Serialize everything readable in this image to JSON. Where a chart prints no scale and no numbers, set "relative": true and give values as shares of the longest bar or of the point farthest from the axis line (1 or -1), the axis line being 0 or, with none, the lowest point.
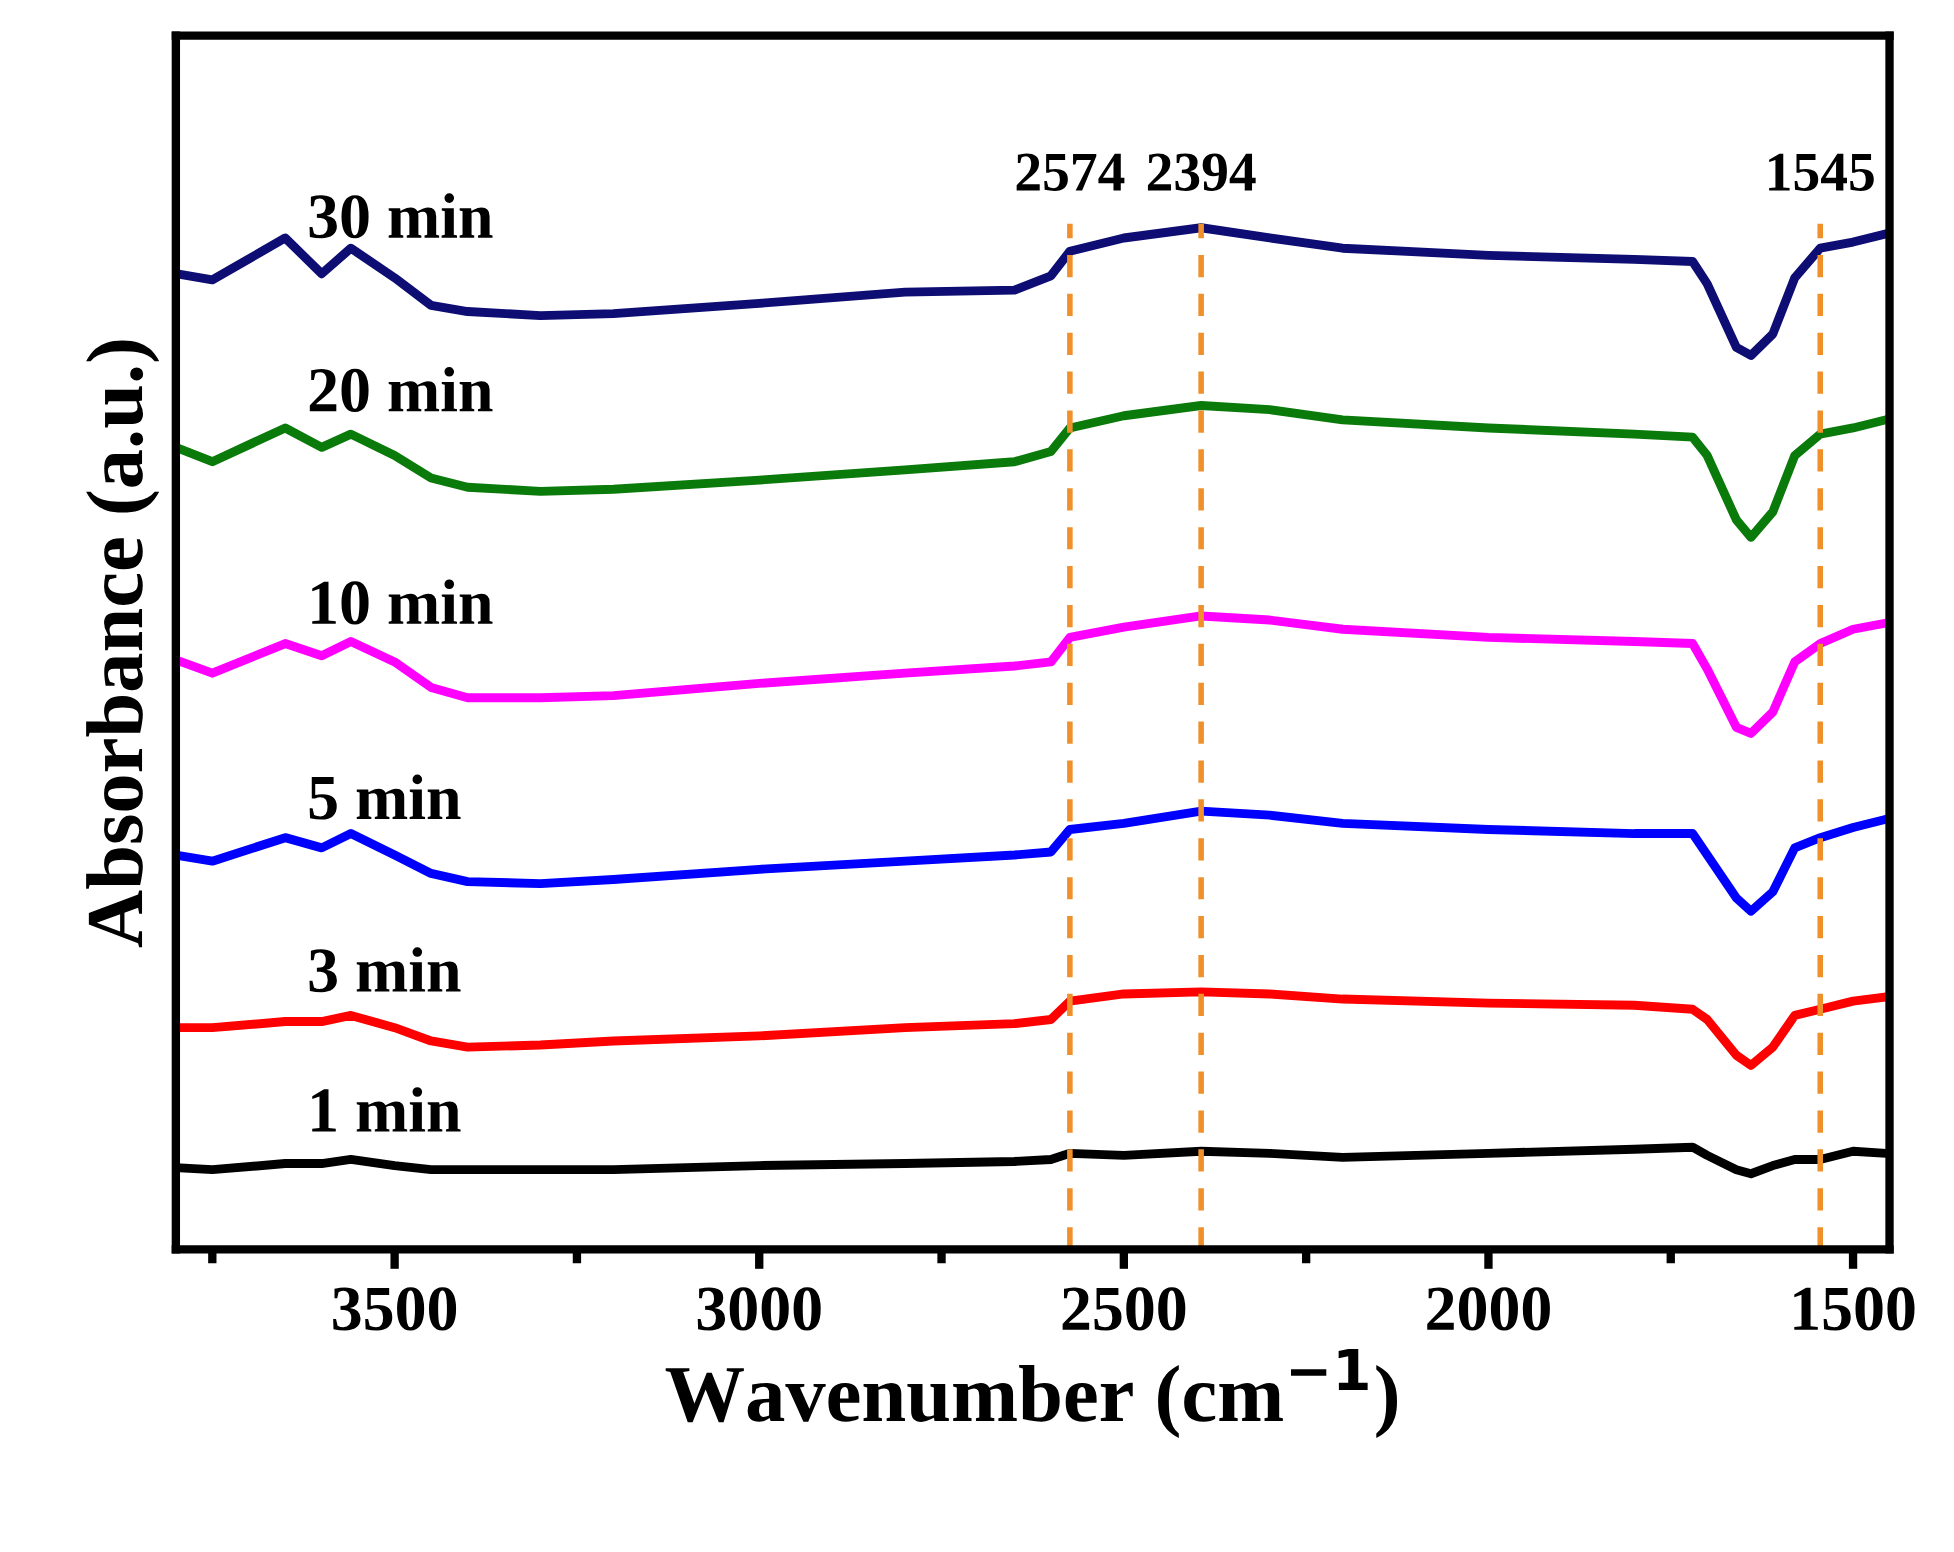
{
  "chart_data": {
    "type": "line",
    "xlabel": "Wavenumber (cm$^{−1}$)",
    "ylabel": "Absorbance (a.u.)",
    "relative": true,
    "x": [
      3800,
      3750,
      3650,
      3600,
      3560,
      3500,
      3450,
      3400,
      3300,
      3200,
      3000,
      2800,
      2650,
      2600,
      2574,
      2500,
      2394,
      2300,
      2200,
      2000,
      1800,
      1720,
      1700,
      1660,
      1640,
      1610,
      1580,
      1545,
      1500,
      1455
    ],
    "xlim": [
      3800,
      1450
    ],
    "xticks": [
      {
        "value": 3750,
        "label": null
      },
      3500,
      {
        "value": 3250,
        "label": null
      },
      3000,
      {
        "value": 2750,
        "label": null
      },
      2500,
      {
        "value": 2250,
        "label": null
      },
      2000,
      {
        "value": 1750,
        "label": null
      },
      1500
    ],
    "series": [
      {
        "name": "1 min",
        "color": "#000000",
        "values": [
          0.08,
          0.078,
          0.084,
          0.084,
          0.088,
          0.082,
          0.078,
          0.078,
          0.078,
          0.078,
          0.082,
          0.084,
          0.086,
          0.088,
          0.094,
          0.092,
          0.096,
          0.094,
          0.09,
          0.094,
          0.098,
          0.1,
          0.092,
          0.078,
          0.074,
          0.082,
          0.088,
          0.088,
          0.096,
          0.094
        ]
      },
      {
        "name": "3 min",
        "color": "#ff0000",
        "values": [
          0.217,
          0.217,
          0.223,
          0.223,
          0.229,
          0.217,
          0.204,
          0.198,
          0.2,
          0.204,
          0.209,
          0.217,
          0.221,
          0.225,
          0.243,
          0.25,
          0.252,
          0.25,
          0.245,
          0.241,
          0.239,
          0.235,
          0.225,
          0.19,
          0.18,
          0.198,
          0.229,
          0.235,
          0.243,
          0.247
        ]
      },
      {
        "name": "5 min",
        "color": "#0000ff",
        "values": [
          0.386,
          0.38,
          0.403,
          0.393,
          0.407,
          0.386,
          0.368,
          0.36,
          0.358,
          0.362,
          0.372,
          0.38,
          0.386,
          0.389,
          0.411,
          0.417,
          0.429,
          0.425,
          0.417,
          0.411,
          0.407,
          0.407,
          0.386,
          0.344,
          0.331,
          0.35,
          0.393,
          0.403,
          0.413,
          0.421
        ]
      },
      {
        "name": "10 min",
        "color": "#ff00ff",
        "values": [
          0.577,
          0.564,
          0.593,
          0.581,
          0.595,
          0.575,
          0.55,
          0.54,
          0.54,
          0.542,
          0.554,
          0.564,
          0.571,
          0.575,
          0.599,
          0.609,
          0.62,
          0.616,
          0.607,
          0.599,
          0.595,
          0.593,
          0.568,
          0.511,
          0.505,
          0.526,
          0.575,
          0.593,
          0.607,
          0.613
        ]
      },
      {
        "name": "20 min",
        "color": "#0a7a0a",
        "values": [
          0.785,
          0.771,
          0.804,
          0.785,
          0.798,
          0.777,
          0.755,
          0.746,
          0.742,
          0.744,
          0.753,
          0.763,
          0.771,
          0.781,
          0.804,
          0.816,
          0.826,
          0.822,
          0.812,
          0.804,
          0.798,
          0.795,
          0.777,
          0.714,
          0.697,
          0.722,
          0.777,
          0.798,
          0.804,
          0.812
        ]
      },
      {
        "name": "30 min",
        "color": "#0d0d73",
        "values": [
          0.955,
          0.949,
          0.99,
          0.955,
          0.98,
          0.951,
          0.924,
          0.918,
          0.914,
          0.916,
          0.926,
          0.937,
          0.939,
          0.953,
          0.977,
          0.99,
          1.0,
          0.99,
          0.98,
          0.973,
          0.969,
          0.967,
          0.945,
          0.883,
          0.875,
          0.896,
          0.951,
          0.98,
          0.986,
          0.994
        ]
      }
    ],
    "ref_lines": [
      {
        "axis": "x",
        "value": 2574,
        "label": "2574",
        "color": "#f0902a",
        "line_style": "dashed"
      },
      {
        "axis": "x",
        "value": 2394,
        "label": "2394",
        "color": "#f0902a",
        "line_style": "dashed"
      },
      {
        "axis": "x",
        "value": 1545,
        "label": "1545",
        "color": "#f0902a",
        "line_style": "dashed"
      }
    ],
    "grid": false,
    "legend": false,
    "marker": "none",
    "line_style": "solid"
  }
}
